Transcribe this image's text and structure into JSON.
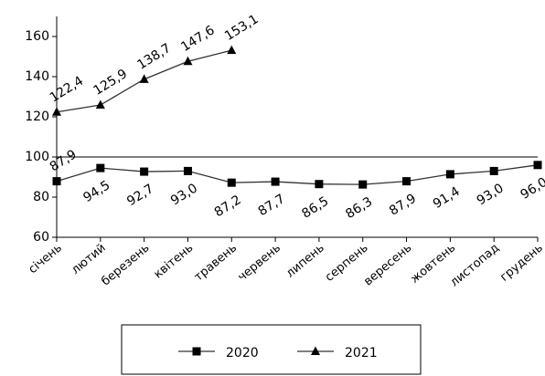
{
  "chart_data": {
    "type": "line",
    "categories": [
      "січень",
      "лютий",
      "березень",
      "квітень",
      "травень",
      "червень",
      "липень",
      "серпень",
      "вересень",
      "жовтень",
      "листопад",
      "грудень"
    ],
    "series": [
      {
        "name": "2020",
        "color": "#000000",
        "marker": "square",
        "values": [
          87.9,
          94.5,
          92.7,
          93.0,
          87.2,
          87.7,
          86.5,
          86.3,
          87.9,
          91.4,
          93.0,
          96.0
        ],
        "value_labels": [
          "87,9",
          "94,5",
          "92,7",
          "93,0",
          "87,2",
          "87,7",
          "86,5",
          "86,3",
          "87,9",
          "91,4",
          "93,0",
          "96,0"
        ]
      },
      {
        "name": "2021",
        "color": "#000000",
        "marker": "triangle",
        "values": [
          122.4,
          125.9,
          138.7,
          147.6,
          153.1,
          null,
          null,
          null,
          null,
          null,
          null,
          null
        ],
        "value_labels": [
          "122,4",
          "125,9",
          "138,7",
          "147,6",
          "153,1",
          null,
          null,
          null,
          null,
          null,
          null,
          null
        ]
      }
    ],
    "ylim": [
      60,
      160
    ],
    "yticks": [
      60,
      80,
      100,
      120,
      140,
      160
    ],
    "reference_line": 100,
    "legend": "bottom"
  }
}
